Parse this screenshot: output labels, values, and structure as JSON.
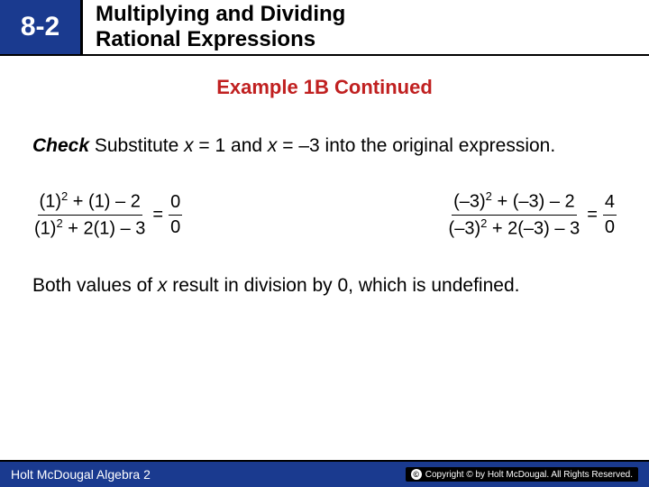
{
  "header": {
    "section": "8-2",
    "title_line1": "Multiplying and Dividing",
    "title_line2": "Rational Expressions"
  },
  "example_label": "Example 1B Continued",
  "check": {
    "lead": "Check",
    "text1": "  Substitute ",
    "var1": "x",
    "text2": " = 1 and ",
    "var2": "x",
    "text3": " = –3 into the original expression."
  },
  "eq1": {
    "num_a": "(1)",
    "num_b": " + (1) – 2",
    "den_a": "(1)",
    "den_b": " + 2(1) – 3",
    "eq": "=",
    "res_num": "0",
    "res_den": "0"
  },
  "eq2": {
    "num_a": "(–3)",
    "num_b": " + (–3) – 2",
    "den_a": "(–3)",
    "den_b": " + 2(–3) – 3",
    "eq": "=",
    "res_num": "4",
    "res_den": "0"
  },
  "sq": "2",
  "conclusion": {
    "t1": "Both values of ",
    "var": "x",
    "t2": " result in division by 0, which is undefined."
  },
  "footer": {
    "left": "Holt McDougal Algebra 2",
    "right": "Copyright © by Holt McDougal. All Rights Reserved."
  },
  "colors": {
    "brand_blue": "#1a3a8f",
    "accent_red": "#c02020"
  }
}
